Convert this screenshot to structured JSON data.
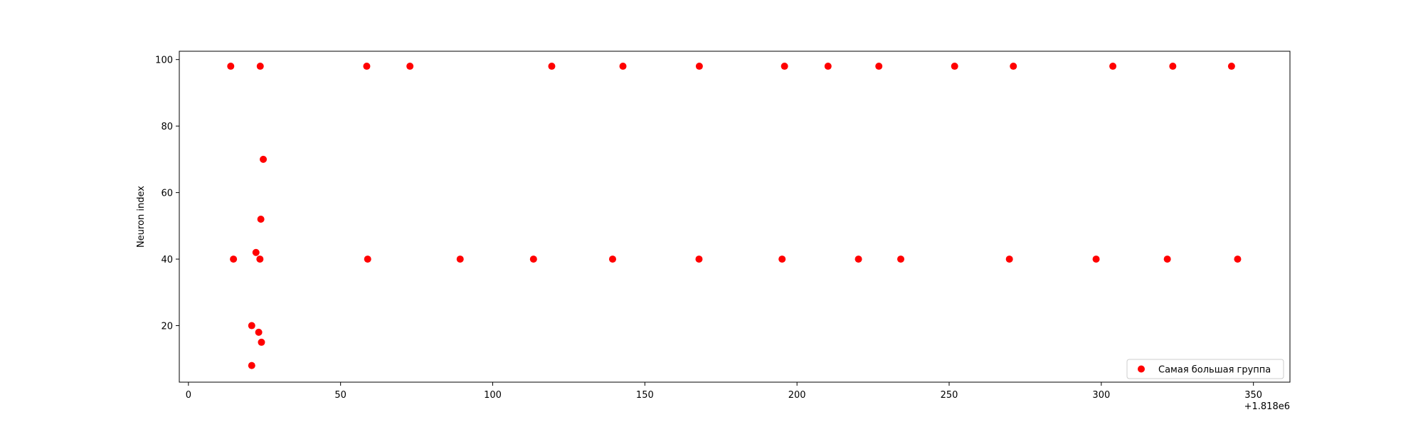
{
  "chart_data": {
    "type": "scatter",
    "title": "",
    "xlabel": "",
    "ylabel": "Neuron index",
    "x_offset_label": "+1.818e6",
    "xlim": [
      -3,
      362
    ],
    "ylim": [
      3,
      102.5
    ],
    "xticks": [
      0,
      50,
      100,
      150,
      200,
      250,
      300,
      350
    ],
    "yticks": [
      20,
      40,
      60,
      80,
      100
    ],
    "grid": false,
    "legend_position": "lower right",
    "series": [
      {
        "name": "Самая большая группа",
        "color": "#ff0000",
        "points": [
          {
            "x": 13.9,
            "y": 98
          },
          {
            "x": 23.6,
            "y": 98
          },
          {
            "x": 58.6,
            "y": 98
          },
          {
            "x": 72.8,
            "y": 98
          },
          {
            "x": 119.4,
            "y": 98
          },
          {
            "x": 142.8,
            "y": 98
          },
          {
            "x": 167.9,
            "y": 98
          },
          {
            "x": 195.9,
            "y": 98
          },
          {
            "x": 210.2,
            "y": 98
          },
          {
            "x": 226.9,
            "y": 98
          },
          {
            "x": 251.8,
            "y": 98
          },
          {
            "x": 271.1,
            "y": 98
          },
          {
            "x": 303.8,
            "y": 98
          },
          {
            "x": 323.5,
            "y": 98
          },
          {
            "x": 342.8,
            "y": 98
          },
          {
            "x": 24.6,
            "y": 70
          },
          {
            "x": 23.8,
            "y": 52
          },
          {
            "x": 22.2,
            "y": 42
          },
          {
            "x": 14.8,
            "y": 40
          },
          {
            "x": 23.5,
            "y": 40
          },
          {
            "x": 58.9,
            "y": 40
          },
          {
            "x": 89.3,
            "y": 40
          },
          {
            "x": 113.4,
            "y": 40
          },
          {
            "x": 139.4,
            "y": 40
          },
          {
            "x": 167.8,
            "y": 40
          },
          {
            "x": 195.1,
            "y": 40
          },
          {
            "x": 220.2,
            "y": 40
          },
          {
            "x": 234.1,
            "y": 40
          },
          {
            "x": 269.8,
            "y": 40
          },
          {
            "x": 298.3,
            "y": 40
          },
          {
            "x": 321.7,
            "y": 40
          },
          {
            "x": 344.8,
            "y": 40
          },
          {
            "x": 20.8,
            "y": 20
          },
          {
            "x": 23.1,
            "y": 18
          },
          {
            "x": 24.0,
            "y": 15
          },
          {
            "x": 20.8,
            "y": 8
          }
        ]
      }
    ]
  }
}
